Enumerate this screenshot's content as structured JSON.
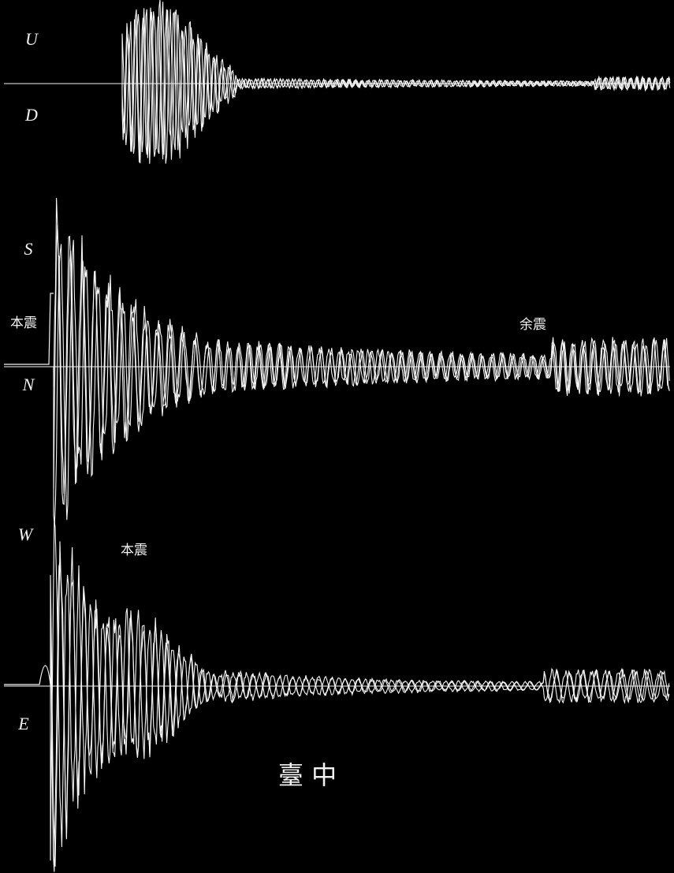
{
  "traces": [
    {
      "top": "U",
      "bottom": "D"
    },
    {
      "top": "S",
      "bottom": "N",
      "main_shock": "本震",
      "aftershock": "余震"
    },
    {
      "top": "W",
      "bottom": "E",
      "main_shock": "本震"
    }
  ],
  "station": "臺 中"
}
